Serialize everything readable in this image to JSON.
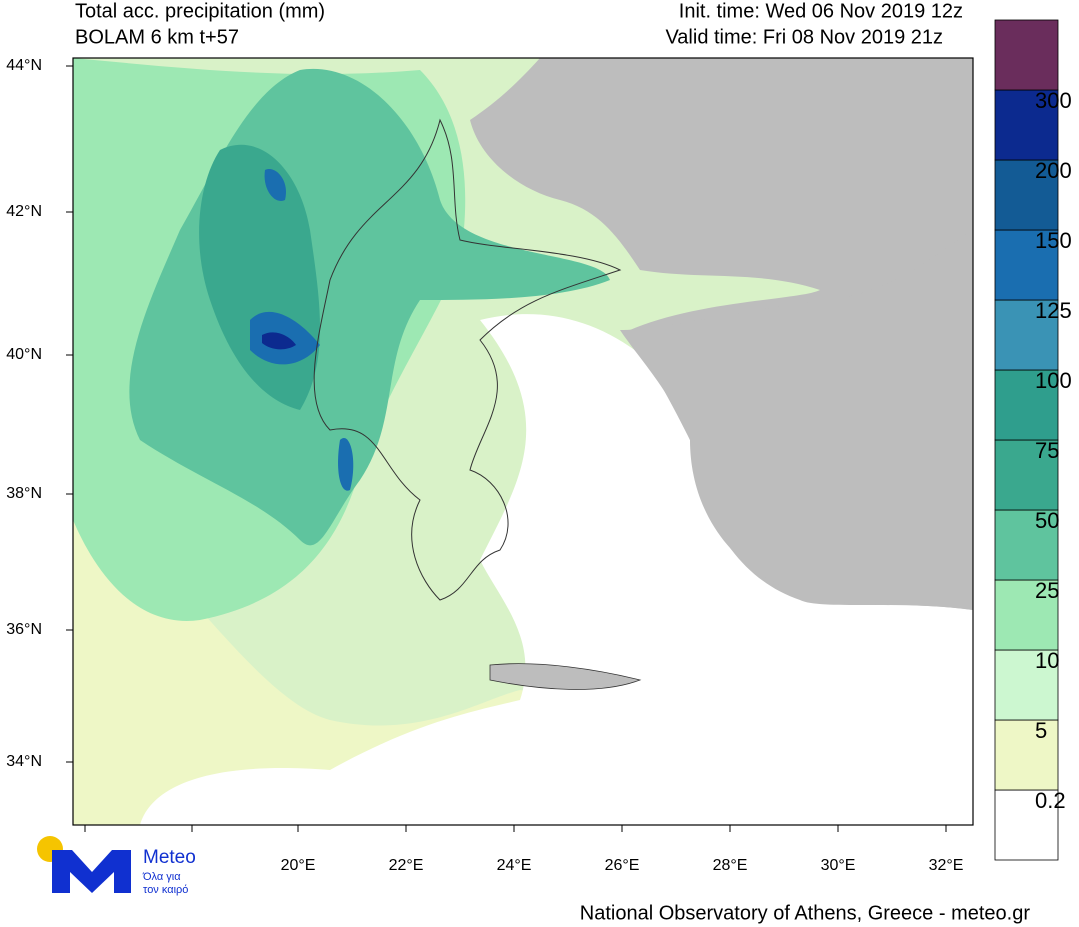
{
  "header": {
    "title_left": [
      "Total acc. precipitation (mm)",
      "BOLAM 6 km t+57"
    ],
    "title_right": [
      "Init. time: Wed 06 Nov 2019 12z",
      "Valid time: Fri 08 Nov 2019 21z"
    ]
  },
  "axes": {
    "lat_labels": [
      "44°N",
      "42°N",
      "40°N",
      "38°N",
      "36°N",
      "34°N"
    ],
    "lon_labels": [
      "20°E",
      "22°E",
      "24°E",
      "26°E",
      "28°E",
      "30°E",
      "32°E"
    ]
  },
  "colorbar": {
    "colors": [
      "#ffffff",
      "#eef7c6",
      "#ccf7d0",
      "#9de8b3",
      "#5fc49e",
      "#3aa88e",
      "#2f9e8d",
      "#3a93b5",
      "#1a6eb0",
      "#135b95",
      "#0c2a8f",
      "#6a2d5c"
    ],
    "labels": [
      "0.2",
      "5",
      "10",
      "25",
      "50",
      "75",
      "100",
      "125",
      "150",
      "200",
      "300"
    ]
  },
  "logo": {
    "name": "Meteo",
    "tagline": [
      "Όλα για",
      "τον καιρό"
    ]
  },
  "footer": "National Observatory of Athens, Greece - meteo.gr"
}
